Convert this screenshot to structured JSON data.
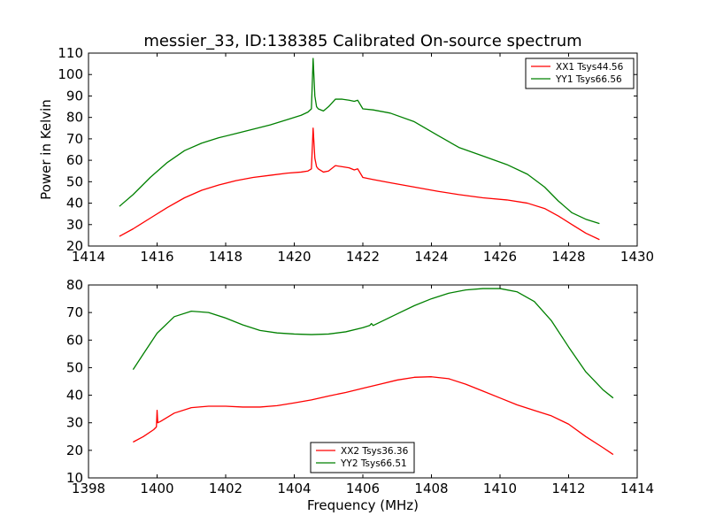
{
  "chart_data": [
    {
      "type": "line",
      "title": "messier_33, ID:138385 Calibrated On-source spectrum",
      "xlabel": "",
      "ylabel": "Power in Kelvin",
      "xlim": [
        1414,
        1430
      ],
      "ylim": [
        20,
        110
      ],
      "xticks": [
        1414,
        1416,
        1418,
        1420,
        1422,
        1424,
        1426,
        1428,
        1430
      ],
      "yticks": [
        20,
        30,
        40,
        50,
        60,
        70,
        80,
        90,
        100,
        110
      ],
      "grid": false,
      "legend": "top-right",
      "series": [
        {
          "name": "XX1 Tsys44.56",
          "color": "#ff0000",
          "x": [
            1414.9,
            1415.3,
            1415.8,
            1416.3,
            1416.8,
            1417.3,
            1417.8,
            1418.3,
            1418.8,
            1419.3,
            1419.8,
            1420.2,
            1420.4,
            1420.5,
            1420.55,
            1420.6,
            1420.65,
            1420.7,
            1420.85,
            1421.0,
            1421.2,
            1421.4,
            1421.6,
            1421.75,
            1421.85,
            1422.0,
            1422.3,
            1422.8,
            1423.5,
            1424.2,
            1424.8,
            1425.5,
            1426.2,
            1426.8,
            1427.3,
            1427.7,
            1428.1,
            1428.5,
            1428.9
          ],
          "y": [
            24.5,
            28,
            33,
            38,
            42.5,
            46,
            48.5,
            50.5,
            52,
            53,
            54,
            54.5,
            55,
            56,
            75,
            61,
            57,
            56,
            54.5,
            55,
            57.5,
            57,
            56.5,
            55.5,
            56,
            52,
            51,
            49.5,
            47.5,
            45.5,
            44,
            42.5,
            41.5,
            40,
            37.5,
            34,
            30,
            26,
            23
          ]
        },
        {
          "name": "YY1 Tsys66.56",
          "color": "#008000",
          "x": [
            1414.9,
            1415.3,
            1415.8,
            1416.3,
            1416.8,
            1417.3,
            1417.8,
            1418.3,
            1418.8,
            1419.3,
            1419.8,
            1420.2,
            1420.4,
            1420.5,
            1420.55,
            1420.6,
            1420.65,
            1420.7,
            1420.85,
            1421.0,
            1421.2,
            1421.4,
            1421.6,
            1421.75,
            1421.85,
            1422.0,
            1422.3,
            1422.8,
            1423.5,
            1424.2,
            1424.8,
            1425.5,
            1426.2,
            1426.8,
            1427.3,
            1427.7,
            1428.1,
            1428.5,
            1428.9
          ],
          "y": [
            38.5,
            44,
            52,
            59,
            64.5,
            68,
            70.5,
            72.5,
            74.5,
            76.5,
            79,
            81,
            82.5,
            84,
            107.5,
            90,
            85,
            84,
            83,
            85,
            88.5,
            88.5,
            88,
            87.5,
            88,
            84,
            83.5,
            82,
            78,
            71.5,
            66,
            62,
            58,
            53.5,
            47.5,
            41,
            35.5,
            32.5,
            30.5
          ]
        }
      ]
    },
    {
      "type": "line",
      "title": "",
      "xlabel": "Frequency (MHz)",
      "ylabel": "",
      "xlim": [
        1398,
        1414
      ],
      "ylim": [
        10,
        80
      ],
      "xticks": [
        1398,
        1400,
        1402,
        1404,
        1406,
        1408,
        1410,
        1412,
        1414
      ],
      "yticks": [
        10,
        20,
        30,
        40,
        50,
        60,
        70,
        80
      ],
      "grid": false,
      "legend": "bottom-center",
      "series": [
        {
          "name": "XX2 Tsys36.36",
          "color": "#ff0000",
          "x": [
            1399.3,
            1399.6,
            1399.9,
            1399.98,
            1400.0,
            1400.02,
            1400.1,
            1400.5,
            1401.0,
            1401.5,
            1402.0,
            1402.5,
            1403.0,
            1403.5,
            1404.0,
            1404.5,
            1405.0,
            1405.5,
            1406.0,
            1406.5,
            1407.0,
            1407.5,
            1408.0,
            1408.5,
            1409.0,
            1409.5,
            1410.0,
            1410.5,
            1411.0,
            1411.5,
            1412.0,
            1412.5,
            1413.0,
            1413.3
          ],
          "y": [
            23,
            25,
            27.5,
            28.5,
            34.5,
            30,
            30.5,
            33.5,
            35.5,
            36,
            36,
            35.7,
            35.7,
            36.2,
            37.2,
            38.3,
            39.7,
            41,
            42.5,
            44,
            45.5,
            46.5,
            46.7,
            46,
            44,
            41.5,
            39,
            36.5,
            34.5,
            32.5,
            29.5,
            25,
            21,
            18.5
          ]
        },
        {
          "name": "YY2 Tsys66.51",
          "color": "#008000",
          "x": [
            1399.3,
            1399.6,
            1400.0,
            1400.5,
            1401.0,
            1401.5,
            1402.0,
            1402.5,
            1403.0,
            1403.5,
            1404.0,
            1404.5,
            1405.0,
            1405.5,
            1406.0,
            1406.2,
            1406.25,
            1406.3,
            1406.5,
            1407.0,
            1407.5,
            1408.0,
            1408.5,
            1409.0,
            1409.5,
            1410.0,
            1410.5,
            1411.0,
            1411.5,
            1412.0,
            1412.5,
            1413.0,
            1413.3
          ],
          "y": [
            49.3,
            55,
            62.5,
            68.5,
            70.5,
            70,
            68,
            65.5,
            63.5,
            62.6,
            62.2,
            62,
            62.2,
            63,
            64.5,
            65.3,
            66,
            65.3,
            66.5,
            69.5,
            72.5,
            75,
            77,
            78.2,
            78.7,
            78.7,
            77.5,
            74,
            67,
            57.5,
            48.5,
            42,
            39
          ]
        }
      ]
    }
  ]
}
